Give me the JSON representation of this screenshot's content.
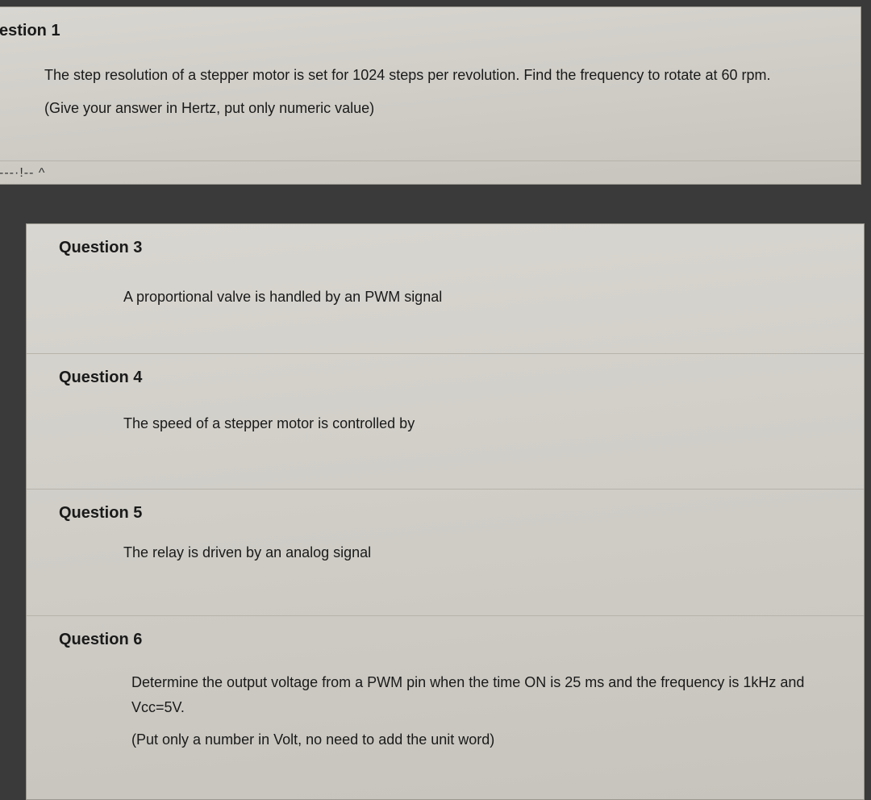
{
  "panels": {
    "top": {
      "q1": {
        "title": "estion 1",
        "line1": "The step resolution of a stepper motor is set for 1024 steps per revolution. Find the frequency to rotate at 60 rpm.",
        "line2": "(Give your answer in Hertz, put only numeric value)"
      },
      "fragment": "---·!-- ^"
    },
    "bottom": {
      "q3": {
        "title": "Question 3",
        "line1": "A proportional valve is handled by an PWM signal"
      },
      "q4": {
        "title": "Question 4",
        "line1": "The speed of a stepper motor is controlled by"
      },
      "q5": {
        "title": "Question 5",
        "line1": "The relay is driven by an analog signal"
      },
      "q6": {
        "title": "Question 6",
        "line1": "Determine the output voltage from a PWM pin when the time ON is 25 ms and the frequency is 1kHz and Vcc=5V.",
        "line2": "(Put only a number in Volt, no need to add the unit word)"
      }
    }
  },
  "colors": {
    "panel_bg_start": "#d8d6d0",
    "panel_bg_end": "#c6c4bc",
    "border": "#9a988f",
    "divider": "#b5b3aa",
    "text": "#1a1a1a",
    "body_bg": "#3a3a3a"
  },
  "typography": {
    "title_fontsize": 20,
    "title_weight": "bold",
    "body_fontsize": 18,
    "font_family": "Arial"
  }
}
